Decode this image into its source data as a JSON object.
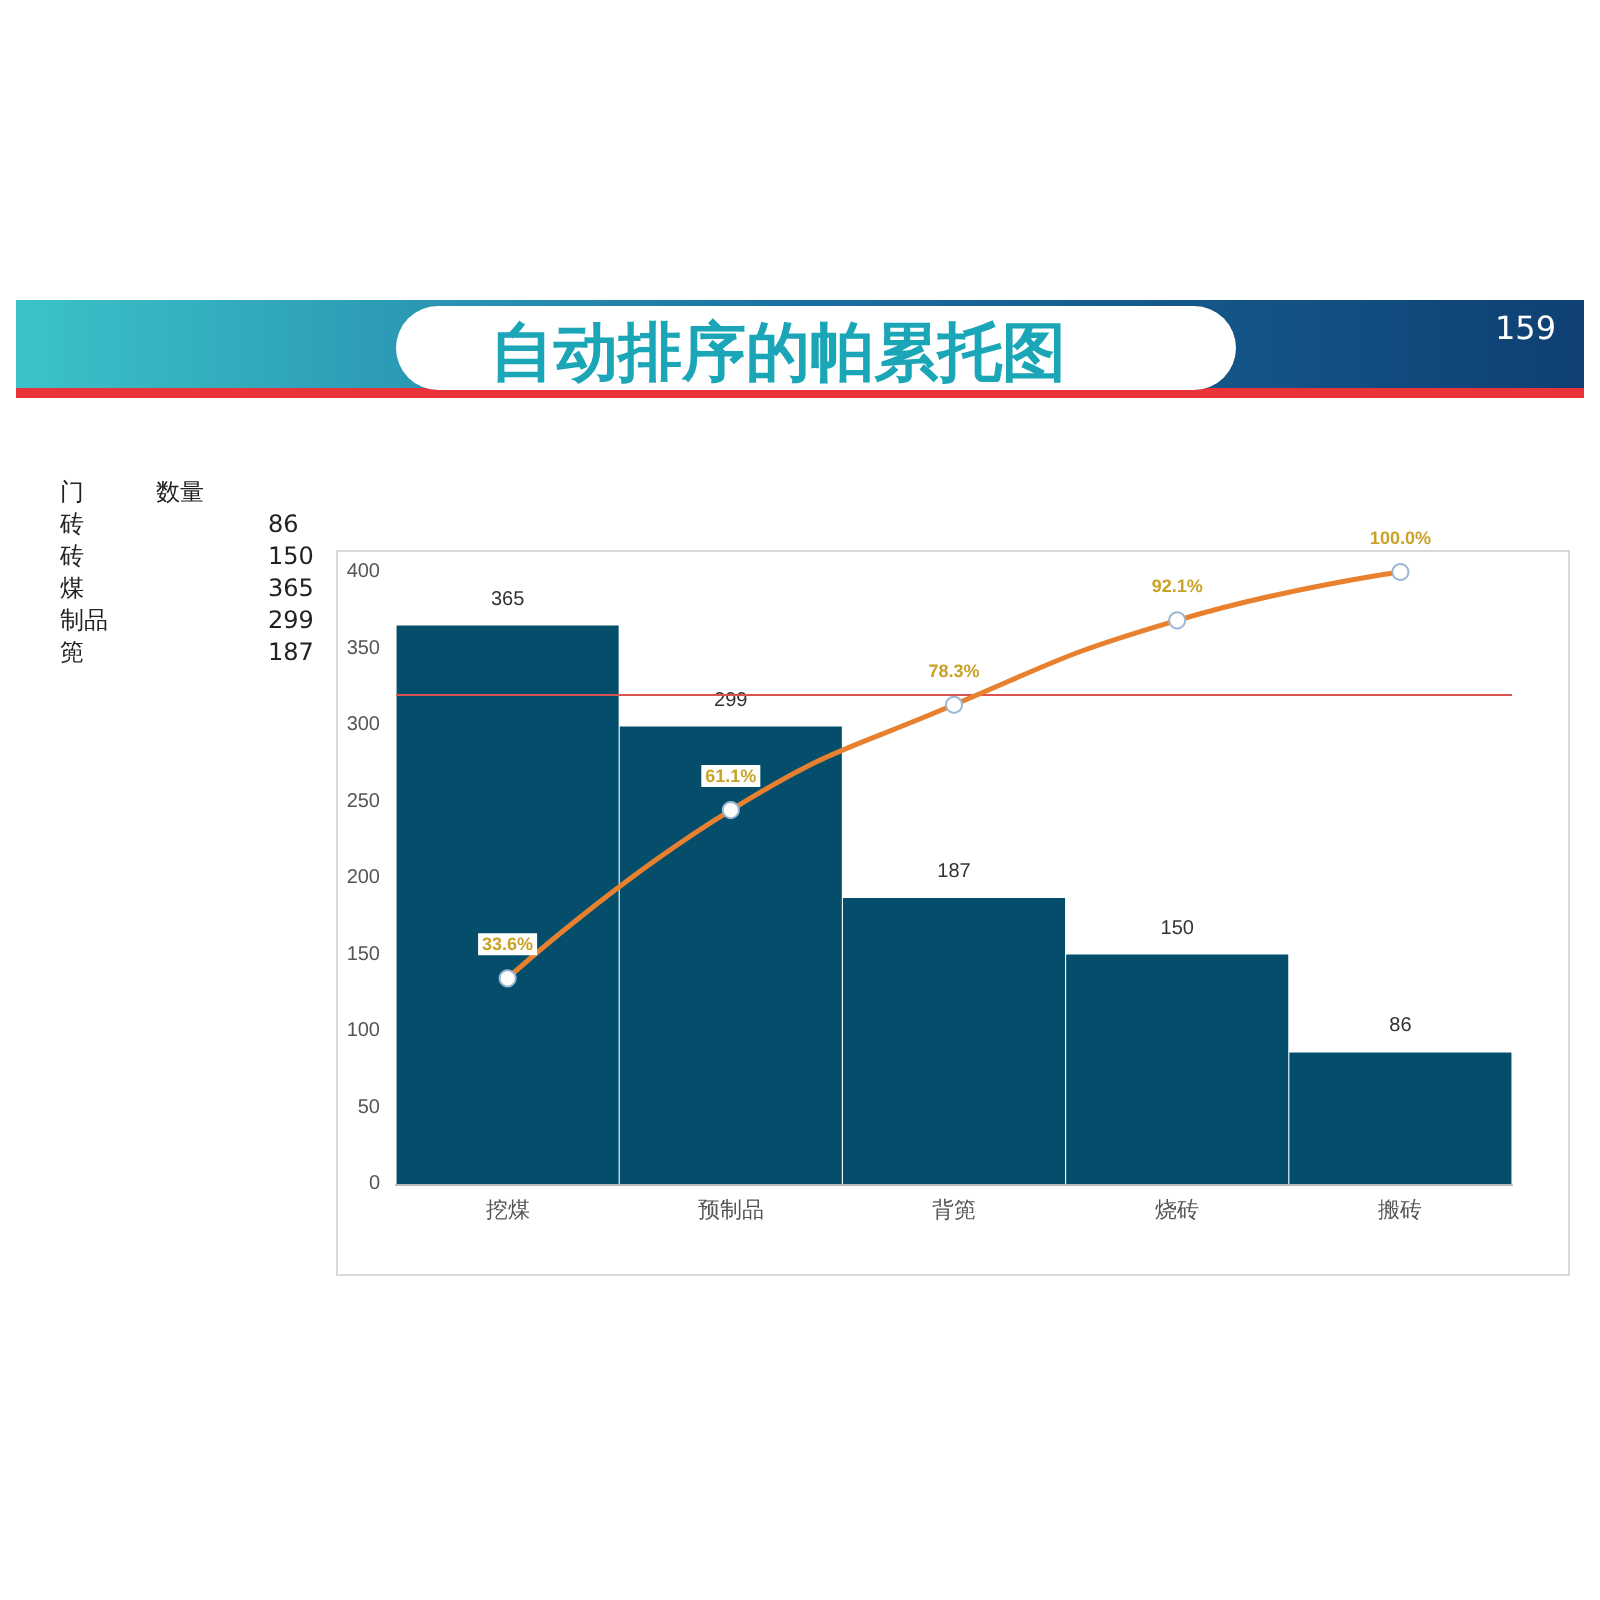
{
  "chart_data": {
    "type": "bar",
    "title": "自动排序的帕累托图",
    "annotations": [
      "159",
      "门",
      "数量",
      "砖",
      "86",
      "砖",
      "150",
      "煤",
      "365",
      "制品",
      "299",
      "篼",
      "187"
    ],
    "categories": [
      "挖煤",
      "预制品",
      "背篼",
      "烧砖",
      "搬砖"
    ],
    "ylim": [
      0,
      400
    ],
    "yticks": [
      0,
      50,
      100,
      150,
      200,
      250,
      300,
      350,
      400
    ],
    "series": [
      {
        "color": "#044e6b",
        "values": [
          365,
          299,
          187,
          150,
          86
        ],
        "value_labels": [
          "365",
          "299",
          "187",
          "150",
          "86"
        ]
      },
      {
        "type": "line",
        "axis": "y2",
        "color": "#e8812f",
        "values": [
          33.6,
          61.1,
          78.3,
          92.1,
          100
        ],
        "value_labels": [
          "33.6%",
          "61.1%",
          "78.3%",
          "92.1%",
          "100.0%"
        ]
      }
    ],
    "ref_lines": [
      {
        "axis": "y",
        "value": 320,
        "color": "#d9534f"
      }
    ],
    "marker": "circle",
    "line_style": "solid",
    "grid": false
  }
}
